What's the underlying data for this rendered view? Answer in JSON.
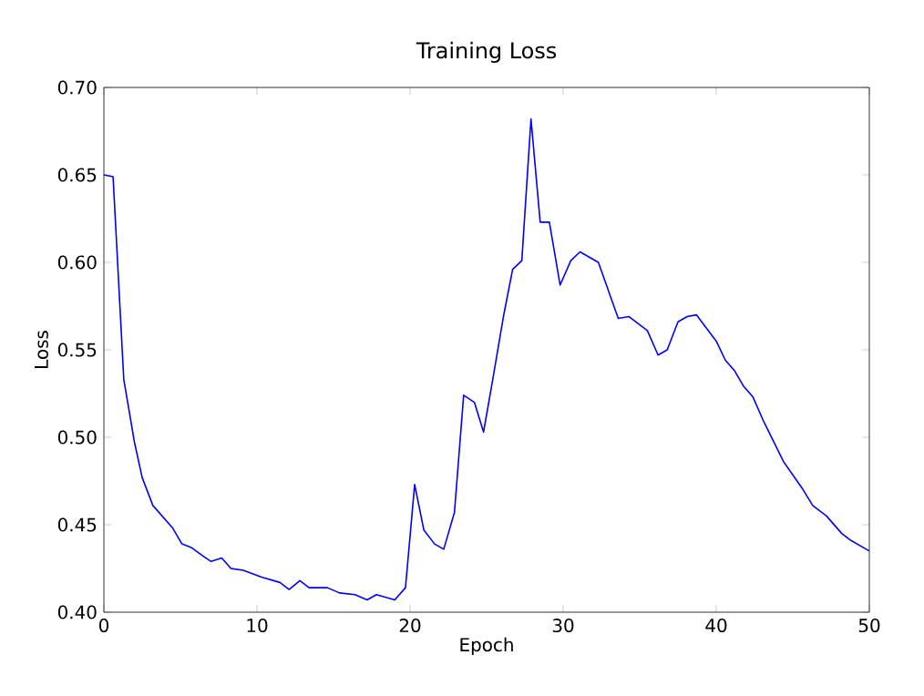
{
  "chart_data": {
    "type": "line",
    "title": "Training Loss",
    "xlabel": "Epoch",
    "ylabel": "Loss",
    "xlim": [
      0,
      50
    ],
    "ylim": [
      0.4,
      0.7
    ],
    "xticks": [
      0,
      10,
      20,
      30,
      40,
      50
    ],
    "yticks": [
      {
        "value": 0.4,
        "label": "0.40"
      },
      {
        "value": 0.45,
        "label": "0.45"
      },
      {
        "value": 0.5,
        "label": "0.50"
      },
      {
        "value": 0.55,
        "label": "0.55"
      },
      {
        "value": 0.6,
        "label": "0.60"
      },
      {
        "value": 0.65,
        "label": "0.65"
      },
      {
        "value": 0.7,
        "label": "0.70"
      }
    ],
    "series": [
      {
        "color": "#0000ff",
        "x": [
          0,
          0.6,
          1.3,
          2.0,
          2.5,
          3.2,
          4.5,
          5.1,
          5.7,
          6.5,
          7.0,
          7.7,
          8.3,
          9.1,
          10.3,
          11.5,
          12.1,
          12.8,
          13.4,
          14.6,
          15.4,
          16.4,
          17.2,
          17.8,
          19.0,
          19.7,
          20.3,
          20.9,
          21.6,
          22.2,
          22.9,
          23.5,
          24.2,
          24.8,
          25.4,
          26.1,
          26.7,
          27.3,
          27.9,
          28.5,
          29.1,
          29.8,
          30.5,
          31.1,
          32.3,
          33.6,
          34.3,
          35.5,
          36.2,
          36.8,
          37.5,
          38.1,
          38.7,
          40.0,
          40.6,
          41.2,
          41.8,
          42.4,
          43.1,
          44.4,
          45.6,
          46.3,
          47.2,
          48.2,
          48.8,
          50.0
        ],
        "values": [
          0.65,
          0.649,
          0.533,
          0.497,
          0.477,
          0.461,
          0.448,
          0.439,
          0.437,
          0.432,
          0.429,
          0.431,
          0.425,
          0.424,
          0.42,
          0.417,
          0.413,
          0.418,
          0.414,
          0.414,
          0.411,
          0.41,
          0.407,
          0.41,
          0.407,
          0.414,
          0.473,
          0.447,
          0.439,
          0.436,
          0.457,
          0.524,
          0.52,
          0.503,
          0.533,
          0.569,
          0.596,
          0.601,
          0.682,
          0.623,
          0.623,
          0.587,
          0.601,
          0.606,
          0.6,
          0.568,
          0.569,
          0.561,
          0.547,
          0.55,
          0.566,
          0.569,
          0.57,
          0.555,
          0.544,
          0.538,
          0.529,
          0.523,
          0.509,
          0.486,
          0.471,
          0.461,
          0.455,
          0.445,
          0.441,
          0.435
        ]
      }
    ]
  }
}
